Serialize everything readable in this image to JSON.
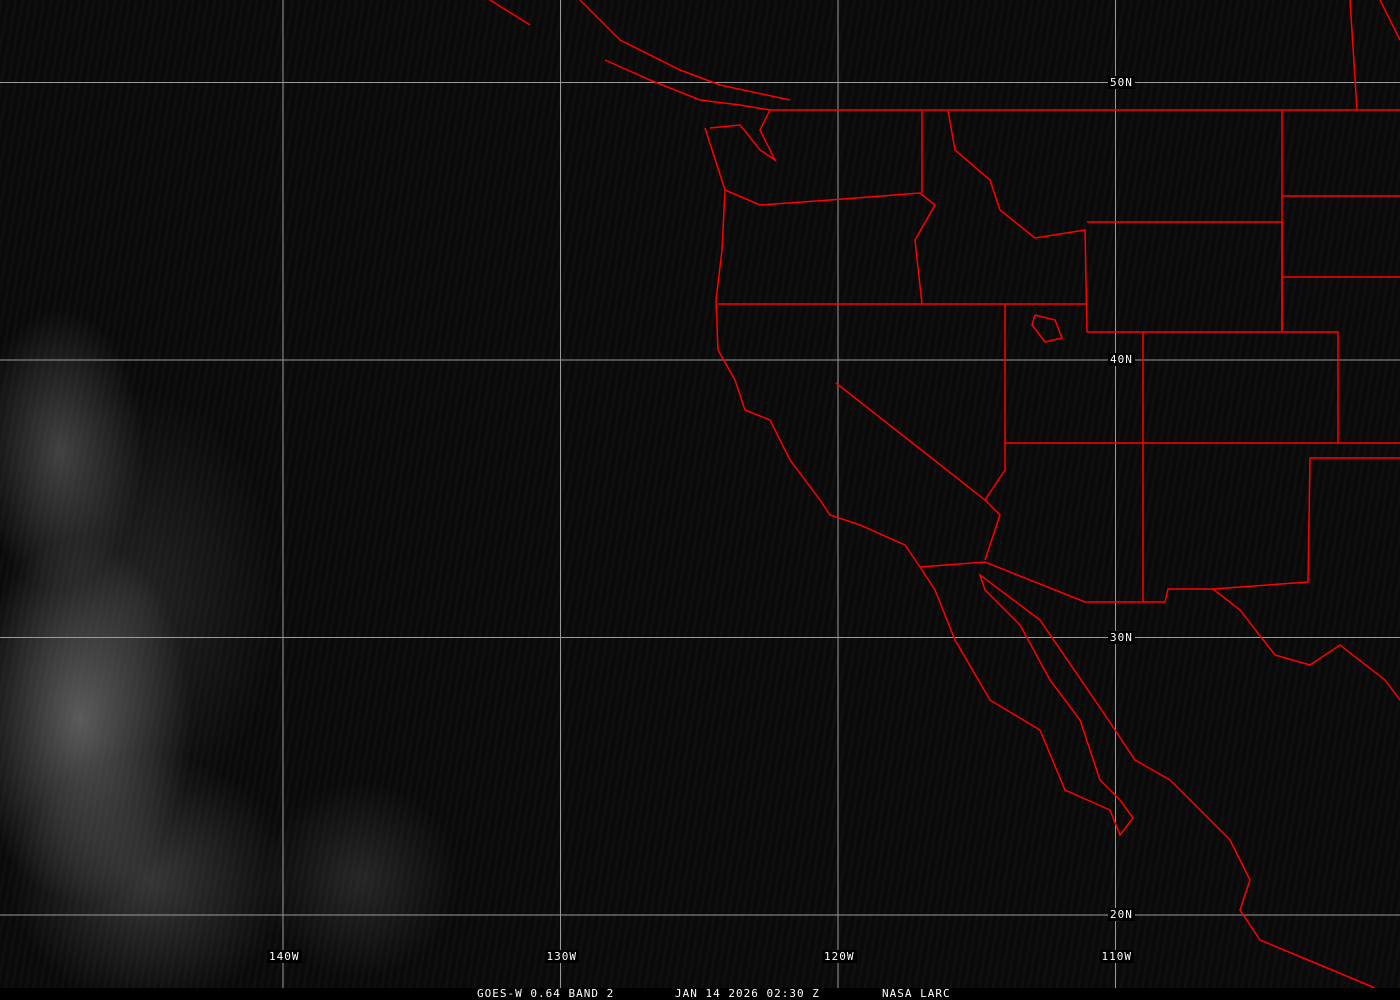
{
  "grid": {
    "lon_labels": [
      {
        "lon": -140,
        "text": "140W"
      },
      {
        "lon": -130,
        "text": "130W"
      },
      {
        "lon": -120,
        "text": "120W"
      },
      {
        "lon": -110,
        "text": "110W"
      }
    ],
    "lat_labels": [
      {
        "lat": 50,
        "text": "50N"
      },
      {
        "lat": 40,
        "text": "40N"
      },
      {
        "lat": 30,
        "text": "30N"
      },
      {
        "lat": 20,
        "text": "20N"
      }
    ],
    "color": "#9a9a9a"
  },
  "overlay_color": "#ff0000",
  "footer": {
    "product": "GOES-W 0.64 BAND 2",
    "datetime": "JAN 14 2026 02:30 Z",
    "source": "NASA LARC"
  }
}
